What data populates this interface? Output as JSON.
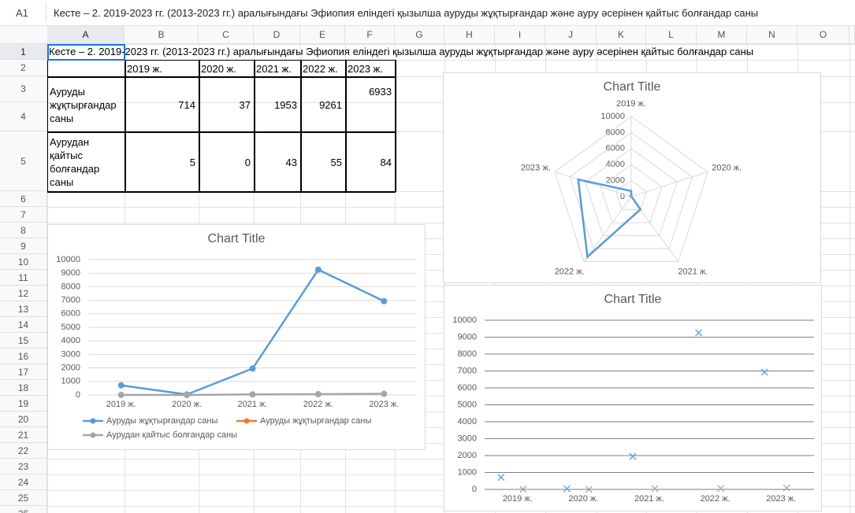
{
  "formula_bar": {
    "cell": "A1",
    "content": "Кесте – 2. 2019-2023 гг. (2013-2023 гг.) аралығындағы Эфиопия еліндегі қызылша ауруды жұқтырғандар және ауру әсерінен қайтыс болғандар саны"
  },
  "columns": [
    "A",
    "B",
    "C",
    "D",
    "E",
    "F",
    "G",
    "H",
    "I",
    "J",
    "K",
    "L",
    "M",
    "N",
    "O"
  ],
  "rows": [
    1,
    2,
    3,
    4,
    5,
    6,
    7,
    8,
    9,
    10,
    11,
    12,
    13,
    14,
    15,
    16,
    17,
    18,
    19,
    20,
    21,
    22,
    23,
    24,
    25,
    26
  ],
  "table": {
    "title": "Кесте – 2. 2019-2023 гг. (2013-2023 гг.) аралығындағы Эфиопия еліндегі қызылша ауруды жұқтырғандар және ауру әсерінен қайтыс болғандар саны",
    "header": [
      "2019 ж.",
      "2020 ж.",
      "2021 ж.",
      "2022 ж.",
      "2023 ж."
    ],
    "rows": [
      {
        "label": "Ауруды жұқтырғандар саны",
        "values": [
          714,
          37,
          1953,
          9261,
          6933
        ]
      },
      {
        "label": "Аурудан қайтыс болғандар саны",
        "values": [
          5,
          0,
          43,
          55,
          84
        ]
      }
    ]
  },
  "charts": [
    {
      "type": "line",
      "title": "Chart Title",
      "categories": [
        "2019 ж.",
        "2020 ж.",
        "2021 ж.",
        "2022 ж.",
        "2023 ж."
      ],
      "series": [
        {
          "name": "Ауруды жұқтырғандар саны",
          "color": "#5b9bd5",
          "values": [
            714,
            37,
            1953,
            9261,
            6933
          ]
        },
        {
          "name": "Ауруды жұқтырғандар саны",
          "color": "#ed7d31",
          "values": [
            null,
            null,
            null,
            null,
            null
          ]
        },
        {
          "name": "Аурудан қайтыс болғандар саны",
          "color": "#a5a5a5",
          "values": [
            5,
            0,
            43,
            55,
            84
          ]
        }
      ],
      "ylim": [
        0,
        10000
      ],
      "yticks": [
        0,
        1000,
        2000,
        3000,
        4000,
        5000,
        6000,
        7000,
        8000,
        9000,
        10000
      ],
      "grid": true,
      "legend": "bottom"
    },
    {
      "type": "radar",
      "title": "Chart Title",
      "categories": [
        "2019 ж.",
        "2020 ж.",
        "2021 ж.",
        "2022 ж.",
        "2023 ж."
      ],
      "series": [
        {
          "name": "Ауруды жұқтырғандар саны",
          "color": "#5b9bd5",
          "values": [
            714,
            37,
            1953,
            9261,
            6933
          ]
        },
        {
          "name": "Аурудан қайтыс болғандар саны",
          "color": "#a5a5a5",
          "values": [
            5,
            0,
            43,
            55,
            84
          ]
        }
      ],
      "rlim": [
        0,
        10000
      ],
      "rticks": [
        0,
        2000,
        4000,
        6000,
        8000,
        10000
      ],
      "grid": true
    },
    {
      "type": "scatter",
      "title": "Chart Title",
      "categories": [
        "2019 ж.",
        "2020 ж.",
        "2021 ж.",
        "2022 ж.",
        "2023 ж."
      ],
      "series": [
        {
          "name": "Ауруды жұқтырғандар саны",
          "color": "#5b9bd5",
          "values": [
            714,
            37,
            1953,
            9261,
            6933
          ]
        },
        {
          "name": "Аурудан қайтыс болғандар саны",
          "color": "#a5a5a5",
          "values": [
            5,
            0,
            43,
            55,
            84
          ]
        }
      ],
      "ylim": [
        0,
        10000
      ],
      "yticks": [
        0,
        1000,
        2000,
        3000,
        4000,
        5000,
        6000,
        7000,
        8000,
        9000,
        10000
      ],
      "grid": true
    }
  ]
}
